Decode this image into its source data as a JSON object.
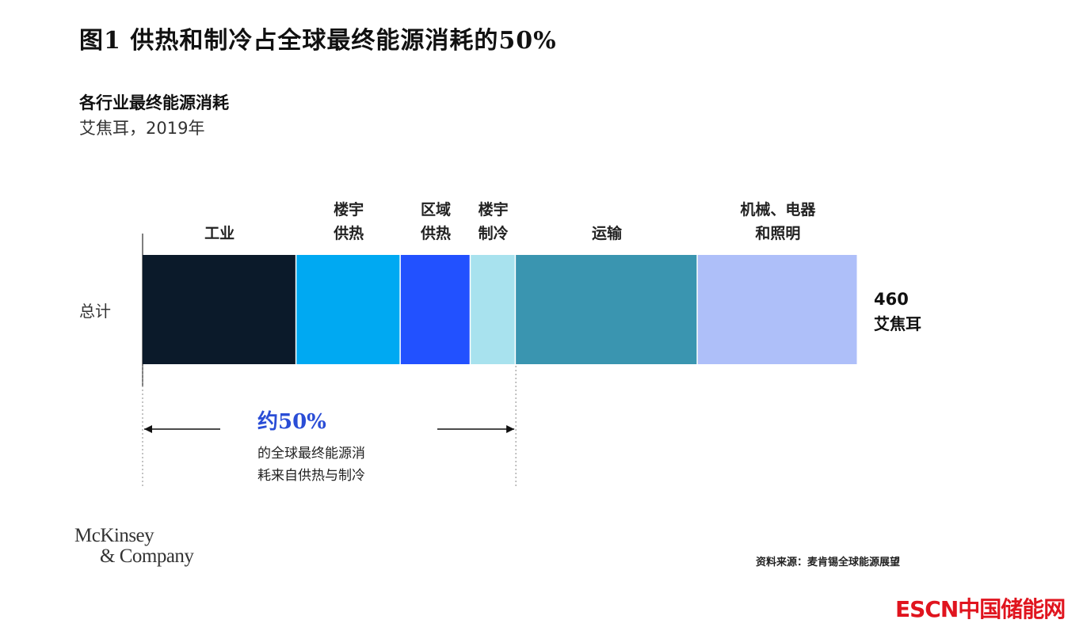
{
  "title": "图1 供热和制冷占全球最终能源消耗的50%",
  "subtitle": "各行业最终能源消耗",
  "unit_line": "艾焦耳，2019年",
  "chart_data": {
    "type": "bar",
    "orientation": "horizontal-stacked",
    "category": "总计",
    "segments": [
      {
        "label": [
          "工业"
        ],
        "value": 99,
        "color": "#0b1a2a"
      },
      {
        "label": [
          "楼宇",
          "供热"
        ],
        "value": 67,
        "color": "#00a9f2"
      },
      {
        "label": [
          "区域",
          "供热"
        ],
        "value": 45,
        "color": "#2251ff"
      },
      {
        "label": [
          "楼宇",
          "制冷"
        ],
        "value": 29,
        "color": "#a8e2ee"
      },
      {
        "label": [
          "运输"
        ],
        "value": 117,
        "color": "#3a95b0"
      },
      {
        "label": [
          "机械、电器",
          "和照明"
        ],
        "value": 103,
        "color": "#aebff9"
      }
    ],
    "total_value": "460",
    "total_unit": "艾焦耳",
    "annotation": {
      "percent": "约50%",
      "lines": [
        "的全球最终能源消",
        "耗来自供热与制冷"
      ],
      "color": "#2a4dd6"
    }
  },
  "source": "资料来源：麦肯锡全球能源展望",
  "logo": {
    "line1": "McKinsey",
    "line2": "& Company"
  },
  "watermark": "ESCN中国储能网"
}
